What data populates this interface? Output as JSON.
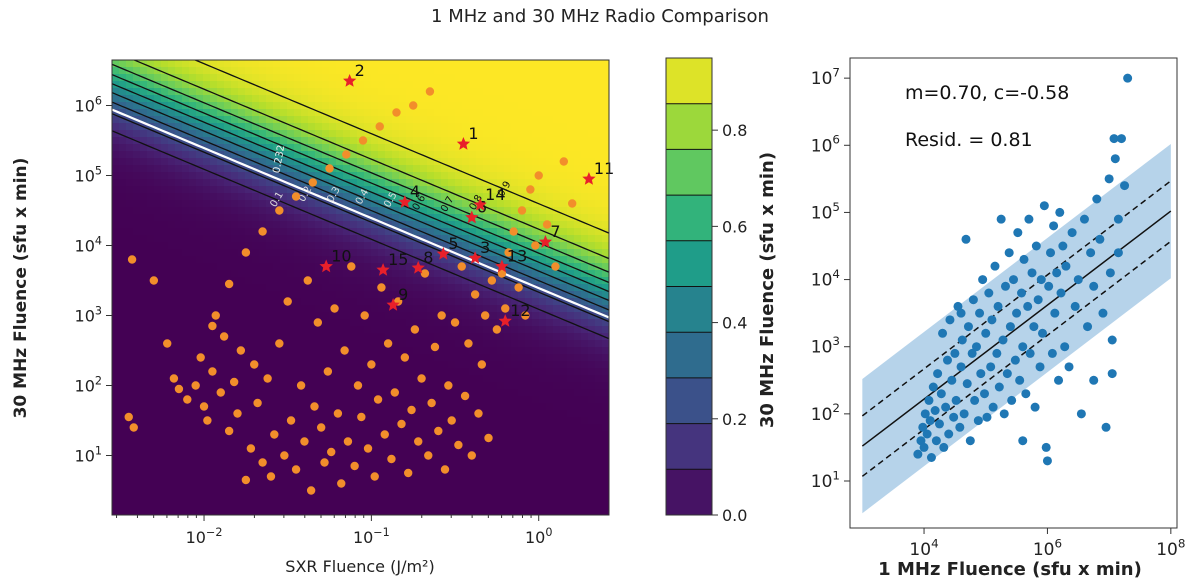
{
  "title": "1 MHz and 30 MHz Radio Comparison",
  "colors": {
    "viridis": [
      "#440154",
      "#482878",
      "#3e4989",
      "#31688e",
      "#26828e",
      "#1f9e89",
      "#35b779",
      "#6ece58",
      "#b5de2b",
      "#fde725"
    ],
    "orange_point": "#f28e2b",
    "red_star": "#e8202a",
    "blue_point": "#1f77b4",
    "blue_band": "#a9cbe6",
    "contour_line": "#111111",
    "highlight_contour": "#ffffff"
  },
  "chart_data": [
    {
      "type": "heatmap",
      "name": "probability_map",
      "xlabel": "SXR Fluence (J/m²)",
      "ylabel": "30 MHz Fluence (sfu x min)",
      "xscale": "log",
      "yscale": "log",
      "xlim_log10": [
        -2.55,
        0.42
      ],
      "ylim_log10": [
        0.15,
        6.65
      ],
      "xticks": [
        {
          "log": -2,
          "label": "10",
          "exp": "−2"
        },
        {
          "log": -1,
          "label": "10",
          "exp": "−1"
        },
        {
          "log": 0,
          "label": "10",
          "exp": "0"
        }
      ],
      "yticks": [
        {
          "log": 1,
          "label": "10",
          "exp": "1"
        },
        {
          "log": 2,
          "label": "10",
          "exp": "2"
        },
        {
          "log": 3,
          "label": "10",
          "exp": "3"
        },
        {
          "log": 4,
          "label": "10",
          "exp": "4"
        },
        {
          "log": 5,
          "label": "10",
          "exp": "5"
        },
        {
          "log": 6,
          "label": "10",
          "exp": "6"
        }
      ],
      "model": {
        "kind": "logistic",
        "center_log10_product": 3.73,
        "width": 0.3
      },
      "contour_levels": [
        0.1,
        0.2,
        0.3,
        0.4,
        0.5,
        0.6,
        0.7,
        0.8,
        0.9
      ],
      "contour_labels": [
        "0.1",
        "0.2",
        "0.3",
        "0.4",
        "0.5",
        "0.6",
        "0.7",
        "0.8",
        "0.9",
        "0.232"
      ],
      "highlight_level": 0.232,
      "colorbar": {
        "range": [
          0.0,
          0.95
        ],
        "ticks": [
          "0.0",
          "0.2",
          "0.4",
          "0.6",
          "0.8"
        ],
        "tick_values": [
          0.0,
          0.2,
          0.4,
          0.6,
          0.8
        ]
      },
      "events": [
        {
          "id": "1",
          "x": -0.45,
          "y": 5.45
        },
        {
          "id": "2",
          "x": -1.13,
          "y": 6.35
        },
        {
          "id": "3",
          "x": -0.38,
          "y": 3.82
        },
        {
          "id": "4",
          "x": -0.8,
          "y": 4.62
        },
        {
          "id": "5",
          "x": -0.57,
          "y": 3.88
        },
        {
          "id": "6",
          "x": -0.4,
          "y": 4.4
        },
        {
          "id": "7",
          "x": 0.04,
          "y": 4.05
        },
        {
          "id": "8",
          "x": -0.72,
          "y": 3.68
        },
        {
          "id": "9",
          "x": -0.87,
          "y": 3.15
        },
        {
          "id": "10",
          "x": -1.27,
          "y": 3.7
        },
        {
          "id": "11",
          "x": 0.3,
          "y": 4.95
        },
        {
          "id": "12",
          "x": -0.2,
          "y": 2.92
        },
        {
          "id": "13",
          "x": -0.22,
          "y": 3.7
        },
        {
          "id": "14",
          "x": -0.35,
          "y": 4.58
        },
        {
          "id": "15",
          "x": -0.93,
          "y": 3.65
        }
      ],
      "points": [
        [
          -2.45,
          1.55
        ],
        [
          -2.42,
          1.4
        ],
        [
          -2.43,
          3.8
        ],
        [
          -2.3,
          3.5
        ],
        [
          -2.22,
          2.6
        ],
        [
          -2.18,
          2.1
        ],
        [
          -2.15,
          1.95
        ],
        [
          -2.1,
          1.8
        ],
        [
          -2.05,
          2.0
        ],
        [
          -2.02,
          2.4
        ],
        [
          -2.0,
          1.7
        ],
        [
          -1.98,
          1.5
        ],
        [
          -1.95,
          2.2
        ],
        [
          -1.93,
          3.0
        ],
        [
          -1.9,
          1.9
        ],
        [
          -1.88,
          2.7
        ],
        [
          -1.85,
          1.35
        ],
        [
          -1.82,
          2.05
        ],
        [
          -1.8,
          1.6
        ],
        [
          -1.78,
          2.5
        ],
        [
          -1.75,
          0.65
        ],
        [
          -1.72,
          1.1
        ],
        [
          -1.7,
          2.3
        ],
        [
          -1.68,
          1.75
        ],
        [
          -1.65,
          0.9
        ],
        [
          -1.62,
          2.1
        ],
        [
          -1.6,
          0.7
        ],
        [
          -1.58,
          1.3
        ],
        [
          -1.55,
          2.6
        ],
        [
          -1.52,
          1.0
        ],
        [
          -1.5,
          3.2
        ],
        [
          -1.48,
          1.5
        ],
        [
          -1.45,
          0.8
        ],
        [
          -1.42,
          2.0
        ],
        [
          -1.4,
          1.2
        ],
        [
          -1.38,
          3.5
        ],
        [
          -1.36,
          0.5
        ],
        [
          -1.34,
          1.7
        ],
        [
          -1.32,
          2.9
        ],
        [
          -1.3,
          1.4
        ],
        [
          -1.28,
          0.9
        ],
        [
          -1.26,
          2.2
        ],
        [
          -1.24,
          1.05
        ],
        [
          -1.22,
          3.1
        ],
        [
          -1.2,
          1.6
        ],
        [
          -1.18,
          0.6
        ],
        [
          -1.16,
          2.5
        ],
        [
          -1.14,
          1.2
        ],
        [
          -1.12,
          3.7
        ],
        [
          -1.1,
          0.85
        ],
        [
          -1.08,
          2.0
        ],
        [
          -1.06,
          1.55
        ],
        [
          -1.04,
          3.0
        ],
        [
          -1.02,
          1.1
        ],
        [
          -1.0,
          2.3
        ],
        [
          -0.98,
          0.7
        ],
        [
          -0.96,
          1.8
        ],
        [
          -0.94,
          3.4
        ],
        [
          -0.92,
          1.3
        ],
        [
          -0.9,
          2.6
        ],
        [
          -0.88,
          0.95
        ],
        [
          -0.86,
          1.9
        ],
        [
          -0.84,
          3.2
        ],
        [
          -0.82,
          1.45
        ],
        [
          -0.8,
          2.4
        ],
        [
          -0.78,
          0.75
        ],
        [
          -0.76,
          1.65
        ],
        [
          -0.74,
          2.8
        ],
        [
          -0.72,
          1.2
        ],
        [
          -0.7,
          2.1
        ],
        [
          -0.68,
          3.6
        ],
        [
          -0.66,
          1.0
        ],
        [
          -0.64,
          1.75
        ],
        [
          -0.62,
          2.55
        ],
        [
          -0.6,
          1.35
        ],
        [
          -0.58,
          3.0
        ],
        [
          -0.56,
          0.8
        ],
        [
          -0.54,
          2.0
        ],
        [
          -0.52,
          1.5
        ],
        [
          -0.5,
          2.9
        ],
        [
          -0.48,
          1.15
        ],
        [
          -0.46,
          3.7
        ],
        [
          -0.44,
          1.85
        ],
        [
          -0.42,
          2.6
        ],
        [
          -0.4,
          1.0
        ],
        [
          -0.38,
          3.3
        ],
        [
          -0.36,
          1.6
        ],
        [
          -0.34,
          2.3
        ],
        [
          -0.32,
          3.0
        ],
        [
          -0.3,
          1.25
        ],
        [
          -0.28,
          3.5
        ],
        [
          -0.25,
          2.8
        ],
        [
          -0.22,
          3.6
        ],
        [
          -0.2,
          3.1
        ],
        [
          -0.18,
          3.9
        ],
        [
          -0.15,
          4.2
        ],
        [
          -0.12,
          3.4
        ],
        [
          -0.1,
          4.5
        ],
        [
          -0.08,
          3.0
        ],
        [
          -0.05,
          4.8
        ],
        [
          -0.02,
          4.0
        ],
        [
          0.0,
          5.0
        ],
        [
          0.05,
          4.3
        ],
        [
          0.1,
          3.7
        ],
        [
          0.15,
          5.2
        ],
        [
          0.2,
          4.6
        ],
        [
          -1.95,
          2.85
        ],
        [
          -1.85,
          3.45
        ],
        [
          -1.75,
          3.9
        ],
        [
          -1.65,
          4.2
        ],
        [
          -1.55,
          4.5
        ],
        [
          -1.45,
          4.7
        ],
        [
          -1.35,
          4.9
        ],
        [
          -1.25,
          5.1
        ],
        [
          -1.15,
          5.3
        ],
        [
          -1.05,
          5.5
        ],
        [
          -0.95,
          5.7
        ],
        [
          -0.85,
          5.9
        ],
        [
          -0.75,
          6.0
        ],
        [
          -0.65,
          6.2
        ]
      ]
    },
    {
      "type": "scatter",
      "name": "radio_comparison",
      "xlabel": "1 MHz Fluence (sfu x min)",
      "ylabel": "30 MHz Fluence (sfu x min)",
      "xscale": "log",
      "yscale": "log",
      "xlim_log10": [
        2.8,
        8.1
      ],
      "ylim_log10": [
        0.3,
        7.3
      ],
      "xticks": [
        {
          "log": 4,
          "label": "10",
          "exp": "4"
        },
        {
          "log": 6,
          "label": "10",
          "exp": "6"
        },
        {
          "log": 8,
          "label": "10",
          "exp": "8"
        }
      ],
      "yticks": [
        {
          "log": 1,
          "label": "10",
          "exp": "1"
        },
        {
          "log": 2,
          "label": "10",
          "exp": "2"
        },
        {
          "log": 3,
          "label": "10",
          "exp": "3"
        },
        {
          "log": 4,
          "label": "10",
          "exp": "4"
        },
        {
          "log": 5,
          "label": "10",
          "exp": "5"
        },
        {
          "log": 6,
          "label": "10",
          "exp": "6"
        },
        {
          "log": 7,
          "label": "10",
          "exp": "7"
        }
      ],
      "fit": {
        "m": 0.7,
        "c": -0.58,
        "resid": 0.81,
        "x_range_log10": [
          3.0,
          8.0
        ],
        "band_halfwidth": 1.0,
        "dashed_offset": 0.45
      },
      "annotations": [
        "m=0.70, c=-0.58",
        "Resid. = 0.81"
      ],
      "points": [
        [
          3.9,
          1.4
        ],
        [
          3.95,
          1.6
        ],
        [
          3.98,
          1.8
        ],
        [
          4.0,
          1.5
        ],
        [
          4.02,
          2.0
        ],
        [
          4.05,
          1.7
        ],
        [
          4.08,
          2.2
        ],
        [
          4.1,
          1.9
        ],
        [
          4.12,
          1.35
        ],
        [
          4.15,
          2.4
        ],
        [
          4.18,
          2.05
        ],
        [
          4.2,
          1.6
        ],
        [
          4.22,
          2.6
        ],
        [
          4.25,
          1.85
        ],
        [
          4.28,
          2.3
        ],
        [
          4.3,
          3.2
        ],
        [
          4.32,
          1.5
        ],
        [
          4.35,
          2.1
        ],
        [
          4.38,
          2.8
        ],
        [
          4.4,
          1.7
        ],
        [
          4.42,
          3.4
        ],
        [
          4.45,
          2.5
        ],
        [
          4.48,
          1.95
        ],
        [
          4.5,
          2.9
        ],
        [
          4.52,
          2.2
        ],
        [
          4.55,
          3.6
        ],
        [
          4.58,
          1.8
        ],
        [
          4.6,
          2.7
        ],
        [
          4.62,
          3.1
        ],
        [
          4.65,
          2.0
        ],
        [
          4.68,
          4.6
        ],
        [
          4.7,
          2.45
        ],
        [
          4.72,
          3.3
        ],
        [
          4.75,
          1.6
        ],
        [
          4.78,
          2.9
        ],
        [
          4.8,
          3.7
        ],
        [
          4.82,
          2.2
        ],
        [
          4.85,
          3.0
        ],
        [
          4.88,
          1.9
        ],
        [
          4.9,
          3.5
        ],
        [
          4.92,
          2.6
        ],
        [
          4.95,
          4.0
        ],
        [
          4.98,
          2.3
        ],
        [
          5.0,
          3.2
        ],
        [
          5.02,
          1.95
        ],
        [
          5.05,
          3.8
        ],
        [
          5.08,
          2.7
        ],
        [
          5.1,
          3.4
        ],
        [
          5.12,
          2.1
        ],
        [
          5.15,
          4.2
        ],
        [
          5.18,
          2.9
        ],
        [
          5.2,
          3.6
        ],
        [
          5.22,
          2.4
        ],
        [
          5.25,
          4.9
        ],
        [
          5.28,
          3.1
        ],
        [
          5.3,
          2.0
        ],
        [
          5.32,
          3.9
        ],
        [
          5.35,
          2.6
        ],
        [
          5.38,
          4.4
        ],
        [
          5.4,
          3.3
        ],
        [
          5.42,
          2.2
        ],
        [
          5.45,
          4.0
        ],
        [
          5.48,
          2.8
        ],
        [
          5.5,
          3.5
        ],
        [
          5.52,
          4.7
        ],
        [
          5.55,
          2.5
        ],
        [
          5.58,
          3.8
        ],
        [
          5.6,
          3.0
        ],
        [
          5.62,
          4.3
        ],
        [
          5.65,
          2.3
        ],
        [
          5.68,
          3.6
        ],
        [
          5.7,
          4.9
        ],
        [
          5.72,
          2.9
        ],
        [
          5.75,
          4.1
        ],
        [
          5.78,
          3.3
        ],
        [
          5.8,
          2.1
        ],
        [
          5.82,
          4.5
        ],
        [
          5.85,
          3.7
        ],
        [
          5.88,
          2.7
        ],
        [
          5.9,
          4.0
        ],
        [
          5.92,
          3.2
        ],
        [
          5.95,
          5.1
        ],
        [
          5.98,
          1.5
        ],
        [
          6.0,
          1.3
        ],
        [
          6.02,
          3.9
        ],
        [
          6.05,
          4.4
        ],
        [
          6.08,
          2.9
        ],
        [
          6.1,
          4.8
        ],
        [
          6.12,
          3.5
        ],
        [
          6.15,
          4.1
        ],
        [
          6.18,
          2.5
        ],
        [
          6.2,
          5.0
        ],
        [
          6.22,
          3.8
        ],
        [
          6.25,
          4.5
        ],
        [
          6.28,
          3.0
        ],
        [
          6.3,
          4.2
        ],
        [
          6.35,
          2.7
        ],
        [
          6.4,
          4.7
        ],
        [
          6.45,
          3.6
        ],
        [
          6.5,
          4.0
        ],
        [
          6.55,
          2.0
        ],
        [
          6.6,
          4.9
        ],
        [
          6.65,
          3.3
        ],
        [
          6.7,
          4.4
        ],
        [
          6.75,
          3.9
        ],
        [
          6.8,
          5.2
        ],
        [
          6.85,
          4.6
        ],
        [
          6.9,
          3.5
        ],
        [
          6.95,
          1.8
        ],
        [
          7.0,
          5.5
        ],
        [
          7.02,
          4.1
        ],
        [
          7.05,
          2.6
        ],
        [
          7.08,
          6.1
        ],
        [
          7.1,
          5.8
        ],
        [
          7.15,
          4.9
        ],
        [
          7.2,
          6.1
        ],
        [
          7.25,
          5.4
        ],
        [
          7.3,
          7.0
        ],
        [
          7.05,
          3.1
        ],
        [
          7.15,
          4.4
        ],
        [
          6.75,
          2.5
        ],
        [
          5.6,
          1.6
        ],
        [
          4.6,
          3.5
        ]
      ]
    }
  ]
}
